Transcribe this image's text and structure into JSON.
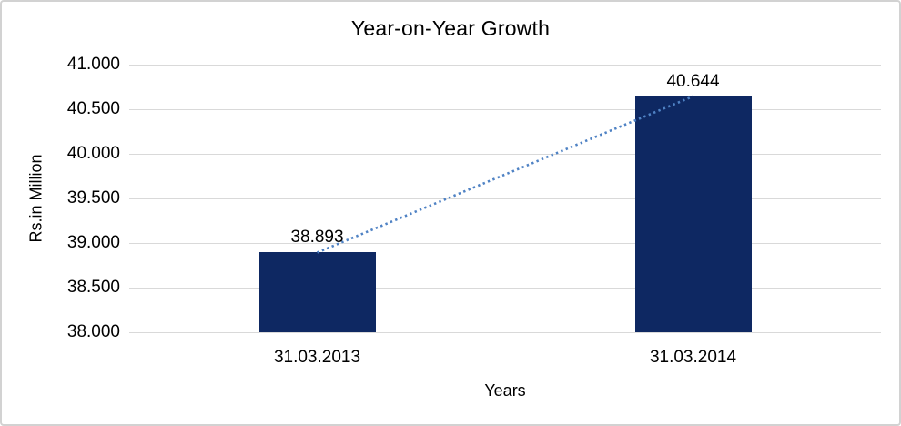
{
  "chart_data": {
    "type": "bar",
    "title": "Year-on-Year Growth",
    "xlabel": "Years",
    "ylabel": "Rs.in Million",
    "categories": [
      "31.03.2013",
      "31.03.2014"
    ],
    "values": [
      38.893,
      40.644
    ],
    "value_labels": [
      "38.893",
      "40.644"
    ],
    "ylim": [
      38.0,
      41.0
    ],
    "yticks": [
      {
        "value": 41.0,
        "label": "41.000"
      },
      {
        "value": 40.5,
        "label": "40.500"
      },
      {
        "value": 40.0,
        "label": "40.000"
      },
      {
        "value": 39.5,
        "label": "39.500"
      },
      {
        "value": 39.0,
        "label": "39.000"
      },
      {
        "value": 38.5,
        "label": "38.500"
      },
      {
        "value": 38.0,
        "label": "38.000"
      }
    ],
    "grid": true,
    "legend": "none",
    "bar_color": "#0e2862",
    "gridline_color": "#d9d9d9",
    "trendline": {
      "type": "linear",
      "style": "dotted",
      "color": "#4f82c4"
    }
  }
}
